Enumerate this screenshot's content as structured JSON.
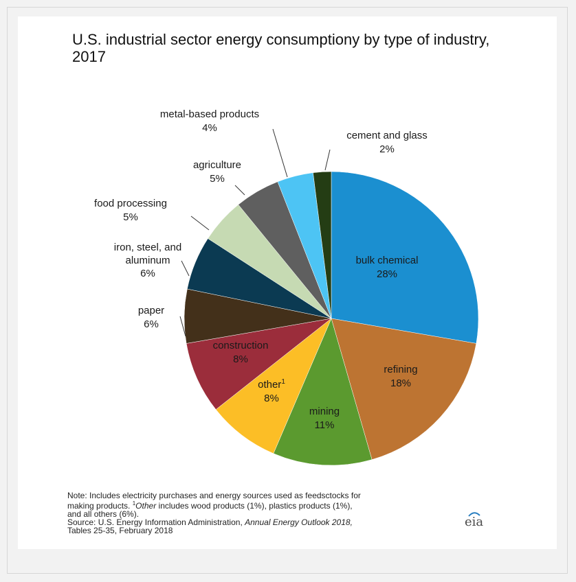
{
  "chart_data": {
    "type": "pie",
    "title": "U.S. industrial sector energy consumptiony by type of industry, 2017",
    "slices": [
      {
        "label": "bulk chemical",
        "value": 28,
        "value_label": "28%",
        "color": "#1b8fd0",
        "text_color": "#1a1a1a"
      },
      {
        "label": "refining",
        "value": 18,
        "value_label": "18%",
        "color": "#bd7432",
        "text_color": "#1a1a1a"
      },
      {
        "label": "mining",
        "value": 11,
        "value_label": "11%",
        "color": "#5b9a2f",
        "text_color": "#1a1a1a"
      },
      {
        "label": "other",
        "value": 8,
        "value_label": "8%",
        "color": "#fcbe26",
        "text_color": "#1a1a1a",
        "footnote_mark": "1"
      },
      {
        "label": "construction",
        "value": 8,
        "value_label": "8%",
        "color": "#9b2d3b",
        "text_color": "#1a1a1a"
      },
      {
        "label": "paper",
        "value": 6,
        "value_label": "6%",
        "color": "#43301a",
        "text_color": "#1a1a1a"
      },
      {
        "label": "iron, steel, and aluminum",
        "value": 6,
        "value_label": "6%",
        "color": "#0b3a52",
        "text_color": "#1a1a1a"
      },
      {
        "label": "food processing",
        "value": 5,
        "value_label": "5%",
        "color": "#c6dab3",
        "text_color": "#1a1a1a"
      },
      {
        "label": "agriculture",
        "value": 5,
        "value_label": "5%",
        "color": "#5f5f5f",
        "text_color": "#1a1a1a"
      },
      {
        "label": "metal-based products",
        "value": 4,
        "value_label": "4%",
        "color": "#4dc4f4",
        "text_color": "#1a1a1a"
      },
      {
        "label": "cement and glass",
        "value": 2,
        "value_label": "2%",
        "color": "#243d14",
        "text_color": "#1a1a1a"
      }
    ]
  },
  "note": {
    "line1": "Note: Includes electricity purchases and energy sources used as feedsctocks for",
    "line2_pre": "making products. ",
    "line2_sup": "1",
    "line2_italic": "Other",
    "line2_post": " includes wood products (1%), plastics products (1%),",
    "line3": "and all others (6%).",
    "line4_pre": "Source: U.S. Energy Information Administration, ",
    "line4_italic": "Annual Energy Outlook 2018,",
    "line5": "Tables 25-35, February 2018"
  },
  "logo_text": "eia"
}
